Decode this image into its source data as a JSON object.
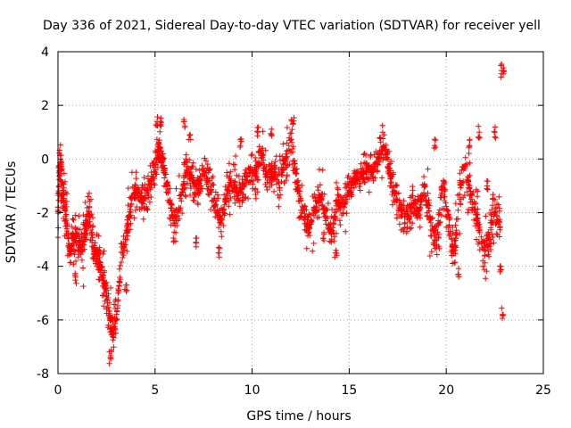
{
  "chart_data": {
    "type": "scatter",
    "title": "Day 336 of 2021, Sidereal Day-to-day VTEC variation (SDTVAR) for receiver yell",
    "xlabel": "GPS time / hours",
    "ylabel": "SDTVAR / TECUs",
    "xlim": [
      0,
      25
    ],
    "ylim": [
      -8,
      4
    ],
    "xticks": [
      0,
      5,
      10,
      15,
      20,
      25
    ],
    "yticks": [
      -8,
      -6,
      -4,
      -2,
      0,
      2,
      4
    ],
    "xtick_labels": [
      "0",
      "5",
      "10",
      "15",
      "20",
      "25"
    ],
    "ytick_labels": [
      "-8",
      "-6",
      "-4",
      "-2",
      "0",
      "2",
      "4"
    ],
    "grid": true,
    "marker": "+",
    "color": "#ff0000",
    "series": [
      {
        "name": "SDTVAR",
        "trend": [
          [
            0.0,
            -2.0
          ],
          [
            0.1,
            0.0
          ],
          [
            0.25,
            -1.2
          ],
          [
            0.4,
            -2.2
          ],
          [
            0.6,
            -3.4
          ],
          [
            0.8,
            -3.0
          ],
          [
            1.0,
            -2.8
          ],
          [
            1.2,
            -3.5
          ],
          [
            1.4,
            -2.6
          ],
          [
            1.6,
            -2.0
          ],
          [
            1.8,
            -3.2
          ],
          [
            2.0,
            -3.6
          ],
          [
            2.2,
            -4.0
          ],
          [
            2.4,
            -4.6
          ],
          [
            2.6,
            -5.6
          ],
          [
            2.8,
            -6.5
          ],
          [
            3.0,
            -6.0
          ],
          [
            3.3,
            -3.6
          ],
          [
            3.6,
            -2.6
          ],
          [
            3.8,
            -1.4
          ],
          [
            4.1,
            -1.2
          ],
          [
            4.4,
            -1.6
          ],
          [
            4.7,
            -1.0
          ],
          [
            5.0,
            -0.3
          ],
          [
            5.2,
            0.5
          ],
          [
            5.4,
            -0.2
          ],
          [
            5.7,
            -1.4
          ],
          [
            6.0,
            -2.4
          ],
          [
            6.3,
            -1.6
          ],
          [
            6.6,
            -0.4
          ],
          [
            6.9,
            -0.6
          ],
          [
            7.2,
            -1.2
          ],
          [
            7.5,
            -0.4
          ],
          [
            7.8,
            -1.0
          ],
          [
            8.1,
            -1.6
          ],
          [
            8.4,
            -2.4
          ],
          [
            8.7,
            -1.2
          ],
          [
            9.0,
            -0.8
          ],
          [
            9.3,
            -1.4
          ],
          [
            9.6,
            -0.9
          ],
          [
            9.9,
            -0.4
          ],
          [
            10.2,
            -0.6
          ],
          [
            10.5,
            0.2
          ],
          [
            10.8,
            -0.8
          ],
          [
            11.1,
            -0.4
          ],
          [
            11.4,
            -1.0
          ],
          [
            11.7,
            0.0
          ],
          [
            12.0,
            0.8
          ],
          [
            12.3,
            -0.8
          ],
          [
            12.6,
            -1.8
          ],
          [
            12.9,
            -2.6
          ],
          [
            13.2,
            -2.0
          ],
          [
            13.5,
            -1.4
          ],
          [
            13.8,
            -2.2
          ],
          [
            14.1,
            -2.8
          ],
          [
            14.4,
            -1.6
          ],
          [
            14.7,
            -1.8
          ],
          [
            15.0,
            -1.2
          ],
          [
            15.3,
            -0.8
          ],
          [
            15.6,
            -0.6
          ],
          [
            15.9,
            -0.2
          ],
          [
            16.2,
            -0.5
          ],
          [
            16.5,
            0.0
          ],
          [
            16.8,
            0.5
          ],
          [
            17.1,
            -0.6
          ],
          [
            17.4,
            -1.4
          ],
          [
            17.7,
            -2.0
          ],
          [
            18.0,
            -2.2
          ],
          [
            18.3,
            -1.6
          ],
          [
            18.6,
            -2.0
          ],
          [
            18.9,
            -1.0
          ],
          [
            19.2,
            -2.4
          ],
          [
            19.5,
            -3.0
          ],
          [
            19.8,
            -1.0
          ],
          [
            20.1,
            -2.2
          ],
          [
            20.4,
            -3.6
          ],
          [
            20.7,
            -1.2
          ],
          [
            21.0,
            -0.2
          ],
          [
            21.3,
            -1.6
          ],
          [
            21.6,
            -2.2
          ],
          [
            21.9,
            -3.4
          ],
          [
            22.2,
            -3.0
          ],
          [
            22.5,
            -2.0
          ],
          [
            22.8,
            -2.5
          ]
        ],
        "spikes": [
          [
            0.15,
            -0.2
          ],
          [
            0.9,
            -4.4
          ],
          [
            2.7,
            -7.4
          ],
          [
            3.5,
            -4.7
          ],
          [
            5.1,
            1.4
          ],
          [
            5.3,
            1.3
          ],
          [
            6.5,
            1.4
          ],
          [
            6.8,
            0.9
          ],
          [
            7.1,
            -3.1
          ],
          [
            8.3,
            -3.5
          ],
          [
            9.4,
            0.5
          ],
          [
            10.3,
            1.0
          ],
          [
            11.0,
            0.9
          ],
          [
            12.1,
            1.3
          ],
          [
            13.7,
            -2.8
          ],
          [
            14.3,
            -3.5
          ],
          [
            16.6,
            0.8
          ],
          [
            19.4,
            0.5
          ],
          [
            20.6,
            -4.3
          ],
          [
            21.2,
            0.5
          ],
          [
            21.7,
            1.0
          ],
          [
            22.1,
            -1.0
          ],
          [
            22.4,
            -1.5
          ],
          [
            22.5,
            1.0
          ],
          [
            22.8,
            -4.0
          ],
          [
            22.9,
            -5.8
          ],
          [
            22.85,
            3.3
          ],
          [
            22.95,
            3.4
          ]
        ]
      }
    ]
  }
}
